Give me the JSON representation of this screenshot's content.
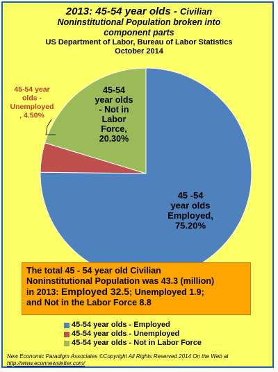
{
  "header": {
    "title_main": "2013: 45-54 year olds - ",
    "title_main_small": "Civilian",
    "title_line2": "Noninstitutional  Population broken into",
    "title_line3": "component parts",
    "source": "US Department of Labor, Bureau of Labor Statistics",
    "date": "October 2014"
  },
  "chart_data": {
    "type": "pie",
    "slices": [
      {
        "name": "45-54 year olds - Employed",
        "value": 75.2,
        "color": "#4f81bd",
        "label_lines": [
          "45 -54",
          "year olds",
          "Employed,",
          "75.20%"
        ]
      },
      {
        "name": "45-54 year olds - Unemployed",
        "value": 4.5,
        "color": "#c0504d",
        "label_lines": [
          "45-54 year",
          "olds -",
          "Unemployed",
          ", 4.50%"
        ]
      },
      {
        "name": "45-54 year olds - Not in Labor Force",
        "value": 20.3,
        "color": "#9bbb59",
        "label_lines": [
          "45-54",
          "year olds",
          "- Not in",
          "Labor",
          "Force,",
          "20.30%"
        ]
      }
    ],
    "legend_position": "bottom-left"
  },
  "summary": {
    "line1": "The total 45 - 54 year old Civilian",
    "line2": "Noninstitutional Population was 43.3 (million)",
    "line3_prefix": "in 2013:  ",
    "line3_big": "Employed 32.5",
    "line3_suffix": "; Unemployed 1.9;",
    "line4": "and Not in the Labor Force 8.8"
  },
  "legend": {
    "items": [
      {
        "label": "45-54 year olds - Employed",
        "color": "#4f81bd"
      },
      {
        "label": "45-54 year olds - Unemployed",
        "color": "#c0504d"
      },
      {
        "label": "45-54 year olds - Not in Labor Force",
        "color": "#9bbb59"
      }
    ]
  },
  "footer": {
    "line1": "New Economic Paradigm Associates  ©Copyright All Rights Reserved 2014 On the Web at",
    "url": "http://www.econnewsletter.com/"
  }
}
